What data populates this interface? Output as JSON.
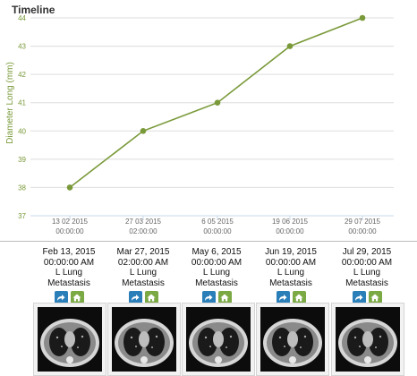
{
  "chart_data": {
    "type": "line",
    "title": "Timeline",
    "ylabel": "Diameter Long (mm)",
    "xlabel": "",
    "ylim": [
      37,
      44
    ],
    "yticks": [
      37,
      38,
      39,
      40,
      41,
      42,
      43,
      44
    ],
    "grid": true,
    "color": "#7a9a3a",
    "x_labels": [
      [
        "13 02 2015",
        "00:00:00"
      ],
      [
        "27 03 2015",
        "02:00:00"
      ],
      [
        "6 05 2015",
        "00:00:00"
      ],
      [
        "19 06 2015",
        "00:00:00"
      ],
      [
        "29 07 2015",
        "00:00:00"
      ]
    ],
    "values": [
      38,
      40,
      41,
      43,
      44
    ]
  },
  "studies": [
    {
      "date": "Feb 13, 2015",
      "time": "00:00:00 AM",
      "location": "L Lung",
      "type": "Metastasis"
    },
    {
      "date": "Mar 27, 2015",
      "time": "02:00:00 AM",
      "location": "L Lung",
      "type": "Metastasis"
    },
    {
      "date": "May 6, 2015",
      "time": "00:00:00 AM",
      "location": "L Lung",
      "type": "Metastasis"
    },
    {
      "date": "Jun 19, 2015",
      "time": "00:00:00 AM",
      "location": "L Lung",
      "type": "Metastasis"
    },
    {
      "date": "Jul 29, 2015",
      "time": "00:00:00 AM",
      "location": "L Lung",
      "type": "Metastasis"
    }
  ],
  "icons": {
    "share": "share-arrow-icon",
    "home": "home-icon"
  },
  "colors": {
    "share_button": "#2a7fb9",
    "home_button": "#7ba944",
    "line": "#7a9a3a",
    "axis_text": "#7a9a3a",
    "grid": "#dddddd"
  }
}
